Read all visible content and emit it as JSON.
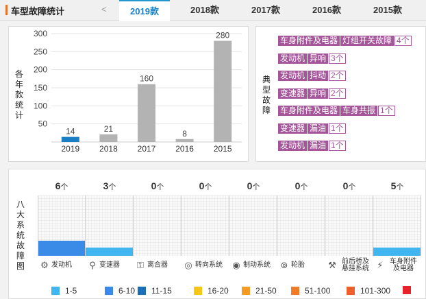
{
  "header": {
    "title": "车型故障统计",
    "prev": "<",
    "tabs": [
      "2019款",
      "2018款",
      "2017款",
      "2016款",
      "2015款"
    ],
    "active_tab": 0
  },
  "bar_panel": {
    "ylabel": "各年款统计",
    "chart_data": {
      "type": "bar",
      "categories": [
        "2019",
        "2018",
        "2017",
        "2016",
        "2015"
      ],
      "values": [
        14,
        21,
        160,
        8,
        280
      ],
      "yticks": [
        "50",
        "100",
        "150",
        "200",
        "250",
        "300"
      ],
      "ylim": [
        0,
        300
      ],
      "colors": [
        "#1a7fc4",
        "#b3b3b3",
        "#b3b3b3",
        "#b3b3b3",
        "#b3b3b3"
      ]
    }
  },
  "fault_panel": {
    "label": "典型故障",
    "items": [
      {
        "tags": [
          "车身附件及电器",
          "灯组开关故障"
        ],
        "count": "4个"
      },
      {
        "tags": [
          "发动机",
          "异响"
        ],
        "count": "3个"
      },
      {
        "tags": [
          "发动机",
          "抖动"
        ],
        "count": "2个"
      },
      {
        "tags": [
          "变速器",
          "异响"
        ],
        "count": "2个"
      },
      {
        "tags": [
          "车身附件及电器",
          "车身共振"
        ],
        "count": "1个"
      },
      {
        "tags": [
          "变速器",
          "漏油"
        ],
        "count": "1个"
      },
      {
        "tags": [
          "发动机",
          "漏油"
        ],
        "count": "1个"
      }
    ]
  },
  "eight_panel": {
    "label": "八大系统故障图",
    "unit": "个",
    "systems": [
      {
        "name": "发动机",
        "count": "6",
        "icon": "engine-icon",
        "level": 0.25,
        "color": "#3a8ae8"
      },
      {
        "name": "变速器",
        "count": "3",
        "icon": "gear-shift-icon",
        "level": 0.14,
        "color": "#41b5ef"
      },
      {
        "name": "离合器",
        "count": "0",
        "icon": "clutch-icon",
        "level": 0
      },
      {
        "name": "转向系统",
        "count": "0",
        "icon": "steering-icon",
        "level": 0
      },
      {
        "name": "制动系统",
        "count": "0",
        "icon": "brake-icon",
        "level": 0
      },
      {
        "name": "轮胎",
        "count": "0",
        "icon": "tire-icon",
        "level": 0
      },
      {
        "name": "前后桥及悬挂系统",
        "count": "0",
        "icon": "suspension-icon",
        "level": 0
      },
      {
        "name": "车身附件及电器",
        "count": "5",
        "icon": "car-electric-icon",
        "level": 0.14,
        "color": "#41b5ef"
      }
    ],
    "legend": [
      {
        "label": "1-5",
        "color": "#41b5ef"
      },
      {
        "label": "6-10",
        "color": "#3a8ae8"
      },
      {
        "label": "11-15",
        "color": "#1a6fb8"
      },
      {
        "label": "16-20",
        "color": "#f5c518"
      },
      {
        "label": "21-50",
        "color": "#f59a23"
      },
      {
        "label": "51-100",
        "color": "#f07c2a"
      },
      {
        "label": "101-300",
        "color": "#ee5f2b"
      },
      {
        "label": "",
        "color": "#e8222b"
      }
    ]
  }
}
